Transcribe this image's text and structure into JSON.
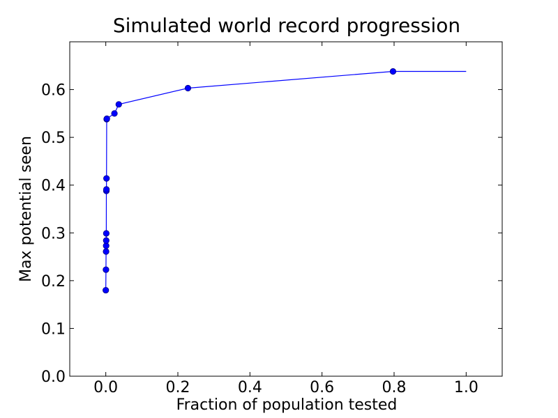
{
  "colors": {
    "series": "#0000ff",
    "marker_edge": "#000080",
    "axes": "#000000",
    "background": "#ffffff"
  },
  "chart_data": {
    "type": "line",
    "title": "Simulated world record progression",
    "xlabel": "Fraction of population tested",
    "ylabel": "Max potential seen",
    "xlim": [
      -0.1,
      1.1
    ],
    "ylim": [
      0.0,
      0.7
    ],
    "xticks": [
      0.0,
      0.2,
      0.4,
      0.6,
      0.8,
      1.0
    ],
    "xtick_labels": [
      "0.0",
      "0.2",
      "0.4",
      "0.6",
      "0.8",
      "1.0"
    ],
    "yticks": [
      0.0,
      0.1,
      0.2,
      0.3,
      0.4,
      0.5,
      0.6
    ],
    "ytick_labels": [
      "0.0",
      "0.1",
      "0.2",
      "0.3",
      "0.4",
      "0.5",
      "0.6"
    ],
    "grid": false,
    "legend": false,
    "series": [
      {
        "x": [
          0.0,
          0.0005,
          0.0008,
          0.001,
          0.0012,
          0.0014,
          0.0016,
          0.0018,
          0.002,
          0.0025,
          0.003,
          0.024,
          0.036,
          0.228,
          0.797,
          1.0
        ],
        "y": [
          0.18,
          0.223,
          0.261,
          0.273,
          0.284,
          0.299,
          0.388,
          0.391,
          0.414,
          0.538,
          0.539,
          0.55,
          0.569,
          0.603,
          0.638,
          0.638
        ],
        "markers": [
          true,
          true,
          true,
          true,
          true,
          true,
          true,
          true,
          true,
          true,
          true,
          true,
          true,
          true,
          true,
          false
        ]
      }
    ]
  }
}
